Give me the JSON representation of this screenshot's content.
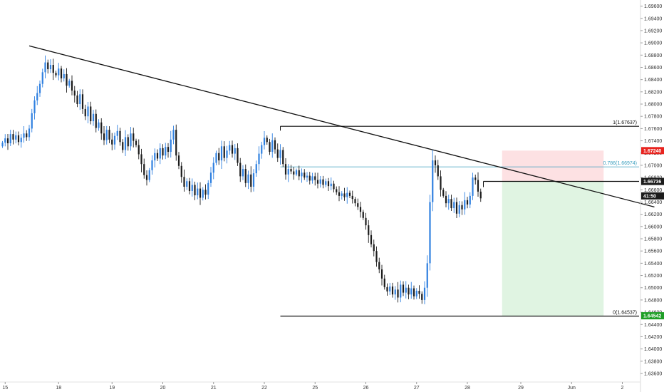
{
  "chart_data": {
    "type": "candlestick",
    "y_axis": {
      "min": 1.6346,
      "max": 1.697,
      "ticks": [
        "1.69600",
        "1.69400",
        "1.69200",
        "1.69000",
        "1.68800",
        "1.68600",
        "1.68400",
        "1.68200",
        "1.68000",
        "1.67800",
        "1.67600",
        "1.67400",
        "1.67200",
        "1.67000",
        "1.66800",
        "1.66600",
        "1.66400",
        "1.66200",
        "1.66000",
        "1.65800",
        "1.65600",
        "1.65400",
        "1.65200",
        "1.65000",
        "1.64800",
        "1.64600",
        "1.64400",
        "1.64200",
        "1.64000",
        "1.63800",
        "1.63600"
      ]
    },
    "x_axis": {
      "labels": [
        {
          "label": "15",
          "bar": 1
        },
        {
          "label": "18",
          "bar": 21
        },
        {
          "label": "19",
          "bar": 41
        },
        {
          "label": "20",
          "bar": 60
        },
        {
          "label": "21",
          "bar": 79
        },
        {
          "label": "22",
          "bar": 98
        },
        {
          "label": "25",
          "bar": 117
        },
        {
          "label": "26",
          "bar": 136
        },
        {
          "label": "27",
          "bar": 155
        },
        {
          "label": "28",
          "bar": 174
        },
        {
          "label": "29",
          "bar": 194
        },
        {
          "label": "Jun",
          "bar": 213
        },
        {
          "label": "2",
          "bar": 232
        }
      ]
    },
    "closes": [
      1.6737,
      1.6744,
      1.6736,
      1.6751,
      1.6742,
      1.6749,
      1.6738,
      1.6745,
      1.6752,
      1.6746,
      1.676,
      1.6785,
      1.6806,
      1.6818,
      1.6833,
      1.6852,
      1.6868,
      1.6857,
      1.6864,
      1.6851,
      1.6847,
      1.6858,
      1.6842,
      1.6849,
      1.683,
      1.6838,
      1.6822,
      1.6814,
      1.68,
      1.6816,
      1.6792,
      1.678,
      1.6796,
      1.6772,
      1.6784,
      1.6761,
      1.677,
      1.6752,
      1.6741,
      1.6758,
      1.6742,
      1.6734,
      1.6748,
      1.6756,
      1.6738,
      1.6725,
      1.6746,
      1.6731,
      1.6752,
      1.674,
      1.6733,
      1.6718,
      1.6702,
      1.6684,
      1.6676,
      1.6692,
      1.6708,
      1.672,
      1.6711,
      1.6728,
      1.6716,
      1.673,
      1.6722,
      1.6742,
      1.6758,
      1.6716,
      1.6699,
      1.6681,
      1.6665,
      1.6674,
      1.6658,
      1.6668,
      1.6651,
      1.6662,
      1.6647,
      1.666,
      1.6652,
      1.6671,
      1.6688,
      1.6704,
      1.672,
      1.6708,
      1.6731,
      1.6712,
      1.6724,
      1.6733,
      1.6719,
      1.6728,
      1.6704,
      1.6682,
      1.6694,
      1.6671,
      1.6685,
      1.6665,
      1.6687,
      1.6702,
      1.6719,
      1.6733,
      1.6745,
      1.6738,
      1.6722,
      1.6741,
      1.6726,
      1.6712,
      1.6725,
      1.6702,
      1.6685,
      1.6694,
      1.669,
      1.6685,
      1.6692,
      1.6682,
      1.6688,
      1.668,
      1.6683,
      1.6675,
      1.6682,
      1.6676,
      1.667,
      1.6677,
      1.6668,
      1.6674,
      1.6666,
      1.667,
      1.6661,
      1.6656,
      1.665,
      1.6654,
      1.6648,
      1.6655,
      1.665,
      1.6645,
      1.6638,
      1.6632,
      1.6624,
      1.6614,
      1.6602,
      1.6586,
      1.6571,
      1.656,
      1.6542,
      1.653,
      1.6515,
      1.6501,
      1.6494,
      1.6502,
      1.6489,
      1.6497,
      1.6484,
      1.6505,
      1.6492,
      1.65,
      1.6489,
      1.6499,
      1.6486,
      1.6495,
      1.649,
      1.648,
      1.65,
      1.654,
      1.664,
      1.6708,
      1.67,
      1.6682,
      1.666,
      1.665,
      1.6638,
      1.6645,
      1.663,
      1.664,
      1.6621,
      1.6635,
      1.6628,
      1.6643,
      1.6636,
      1.665,
      1.668,
      1.6676,
      1.6657,
      1.6646
    ],
    "fib_levels": [
      {
        "label": "1(1.67637)",
        "price": 1.67637
      },
      {
        "label": "0.786(1.66974)",
        "price": 1.66974
      },
      {
        "label": "0(1.64537)",
        "price": 1.64537
      }
    ],
    "price_badges": [
      {
        "label": "1.67240",
        "price": 1.6724,
        "color": "#e8241f"
      },
      {
        "label": "1.66737",
        "price": 1.66737,
        "color": "#1b1b1b"
      },
      {
        "label": "1.66736",
        "price": 1.66736,
        "color": "#1b1b1b"
      },
      {
        "label": "41:50",
        "price": 1.665,
        "color": "#1b1b1b"
      },
      {
        "label": "1.64542",
        "price": 1.64542,
        "color": "#1e9e26"
      }
    ],
    "trendline": {
      "start_bar": 10,
      "start_price": 1.6895,
      "end_bar": 244,
      "end_price": 1.6632
    },
    "position": {
      "start_bar": 187,
      "end_bar": 225,
      "entry": 1.66737,
      "stop": 1.6724,
      "target": 1.64542
    },
    "colors": {
      "up": "#2f80e0",
      "down": "#1b1b1b",
      "fib_mid": "#3a9fbf"
    }
  }
}
